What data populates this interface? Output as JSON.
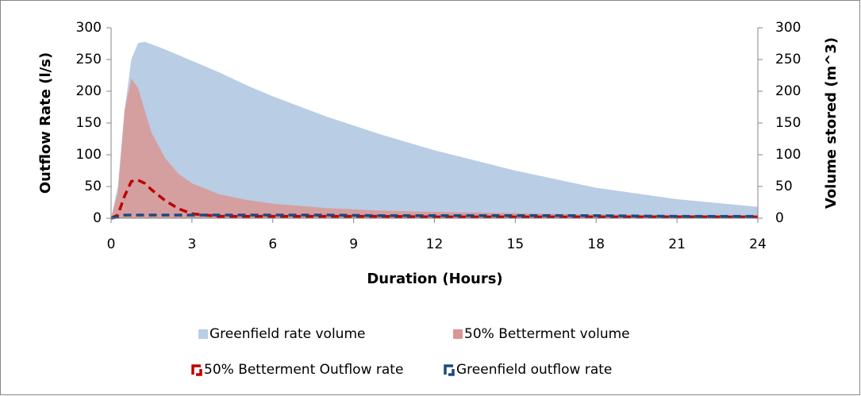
{
  "chart_data": {
    "type": "combo",
    "xlabel": "Duration (Hours)",
    "ylabel": "Outflow Rate (l/s)",
    "y2label": "Volume stored (m^3)",
    "x": [
      0,
      0.25,
      0.5,
      0.75,
      1,
      1.25,
      1.5,
      2,
      2.5,
      3,
      4,
      5,
      6,
      8,
      10,
      12,
      15,
      18,
      21,
      24
    ],
    "xlim": [
      0,
      24
    ],
    "xticks": [
      0,
      3,
      6,
      9,
      12,
      15,
      18,
      21,
      24
    ],
    "ylim": [
      0,
      300
    ],
    "yticks": [
      0,
      50,
      100,
      150,
      200,
      250,
      300
    ],
    "y2lim": [
      0,
      300
    ],
    "y2ticks": [
      0,
      50,
      100,
      150,
      200,
      250,
      300
    ],
    "legend": "bottom",
    "series": [
      {
        "name": "Greenfield rate volume",
        "type": "area",
        "axis": "y2",
        "color": "#b9cde5",
        "values": [
          0,
          50,
          170,
          250,
          276,
          278,
          274,
          266,
          257,
          248,
          230,
          210,
          192,
          160,
          132,
          107,
          75,
          48,
          30,
          18
        ]
      },
      {
        "name": "50% Betterment volume",
        "type": "area",
        "axis": "y2",
        "color": "#d99694",
        "values": [
          0,
          40,
          170,
          220,
          205,
          170,
          135,
          95,
          70,
          55,
          38,
          29,
          23,
          16,
          12,
          10,
          8,
          6,
          5,
          4
        ]
      },
      {
        "name": "50% Betterment Outflow rate",
        "type": "line",
        "dashed": true,
        "color": "#c00000",
        "values": [
          0,
          5,
          35,
          58,
          60,
          55,
          45,
          28,
          15,
          7,
          3,
          3,
          3,
          3,
          3,
          2,
          2,
          2,
          2,
          2
        ]
      },
      {
        "name": "Greenfield outflow rate",
        "type": "line",
        "dashed": true,
        "color": "#1f497d",
        "values": [
          0,
          2,
          5,
          5,
          5,
          5,
          5,
          5,
          5,
          5,
          5,
          5,
          5,
          5,
          4,
          4,
          4,
          4,
          3,
          3
        ]
      }
    ]
  }
}
